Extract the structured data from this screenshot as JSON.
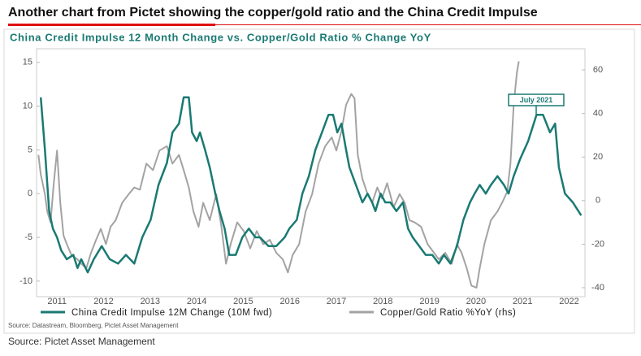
{
  "headline": "Another chart from Pictet showing the copper/gold ratio and the China Credit Impulse",
  "footer": "Source: Pictet Asset Management",
  "chart_data": {
    "type": "line",
    "title": "China Credit Impulse 12 Month Change vs. Copper/Gold Ratio % Change YoY",
    "source": "Source: Datastream, Bloomberg, Pictet Asset Management",
    "annotation": "July 2021",
    "xlim": [
      2011.06,
      2022.84
    ],
    "xticks": [
      {
        "value": 2011.5,
        "label": "2011"
      },
      {
        "value": 2012.5,
        "label": "2012"
      },
      {
        "value": 2013.5,
        "label": "2013"
      },
      {
        "value": 2014.5,
        "label": "2014"
      },
      {
        "value": 2015.5,
        "label": "2015"
      },
      {
        "value": 2016.5,
        "label": "2016"
      },
      {
        "value": 2017.5,
        "label": "2017"
      },
      {
        "value": 2018.5,
        "label": "2018"
      },
      {
        "value": 2019.5,
        "label": "2019"
      },
      {
        "value": 2020.5,
        "label": "2020"
      },
      {
        "value": 2021.5,
        "label": "2021"
      },
      {
        "value": 2022.5,
        "label": "2022"
      }
    ],
    "ylim": [
      -11.5,
      16
    ],
    "yticks": [
      -10,
      -5,
      0,
      5,
      10,
      15
    ],
    "y2lim": [
      -43,
      67.5
    ],
    "y2ticks": [
      -40,
      -20,
      0,
      20,
      40,
      60
    ],
    "series": [
      {
        "name": "China Credit Impulse 12M Change (10M fwd)",
        "color": "#1a7a73",
        "axis": "y",
        "x": [
          2011.15,
          2011.24,
          2011.33,
          2011.41,
          2011.5,
          2011.59,
          2011.71,
          2011.85,
          2011.94,
          2012.02,
          2012.16,
          2012.29,
          2012.46,
          2012.63,
          2012.81,
          2012.98,
          2013.16,
          2013.33,
          2013.51,
          2013.68,
          2013.86,
          2013.98,
          2014.12,
          2014.22,
          2014.33,
          2014.4,
          2014.5,
          2014.57,
          2014.68,
          2014.78,
          2014.9,
          2014.99,
          2015.1,
          2015.2,
          2015.34,
          2015.48,
          2015.62,
          2015.76,
          2015.86,
          2016.04,
          2016.21,
          2016.39,
          2016.49,
          2016.65,
          2016.77,
          2016.91,
          2017.05,
          2017.19,
          2017.33,
          2017.43,
          2017.52,
          2017.61,
          2017.71,
          2017.78,
          2017.92,
          2018.06,
          2018.17,
          2018.27,
          2018.34,
          2018.45,
          2018.55,
          2018.66,
          2018.79,
          2018.93,
          2019.04,
          2019.14,
          2019.28,
          2019.42,
          2019.56,
          2019.7,
          2019.81,
          2019.95,
          2020.09,
          2020.23,
          2020.37,
          2020.47,
          2020.58,
          2020.71,
          2020.82,
          2020.96,
          2021.1,
          2021.2,
          2021.31,
          2021.45,
          2021.62,
          2021.8,
          2021.94,
          2022.09,
          2022.2,
          2022.28,
          2022.41,
          2022.58,
          2022.76
        ],
        "values": [
          11,
          5,
          -2,
          -4,
          -5,
          -6.5,
          -7.5,
          -7,
          -8.5,
          -7.5,
          -9,
          -7.5,
          -6,
          -7.5,
          -8,
          -7,
          -8,
          -5,
          -3,
          1,
          3.5,
          7,
          8,
          11,
          11,
          7,
          6,
          7,
          5,
          3,
          0,
          -2,
          -4,
          -7,
          -7,
          -5,
          -4,
          -5,
          -5,
          -6,
          -6,
          -5,
          -4,
          -3,
          0,
          2,
          5,
          7,
          9,
          9,
          7,
          8,
          5,
          3,
          1,
          -1,
          0,
          -1,
          -2,
          0,
          -1,
          -1,
          -2,
          -1,
          -4,
          -5,
          -6,
          -7,
          -7,
          -8,
          -7,
          -8,
          -6,
          -3,
          -1,
          0,
          1,
          0,
          1,
          2,
          1,
          0,
          2,
          4,
          6,
          9,
          9,
          7,
          8,
          3,
          0,
          -1,
          -2.5
        ]
      },
      {
        "name": "Copper/Gold Ratio %YoY (rhs)",
        "color": "#a3a3a3",
        "axis": "y2",
        "x": [
          2011.1,
          2011.15,
          2011.24,
          2011.29,
          2011.36,
          2011.43,
          2011.5,
          2011.57,
          2011.64,
          2011.71,
          2011.81,
          2011.94,
          2012.02,
          2012.13,
          2012.23,
          2012.34,
          2012.44,
          2012.55,
          2012.65,
          2012.76,
          2012.9,
          2013.04,
          2013.16,
          2013.28,
          2013.42,
          2013.56,
          2013.7,
          2013.86,
          2013.98,
          2014.12,
          2014.22,
          2014.33,
          2014.43,
          2014.54,
          2014.64,
          2014.78,
          2014.92,
          2015.03,
          2015.13,
          2015.23,
          2015.37,
          2015.51,
          2015.65,
          2015.79,
          2015.93,
          2016.07,
          2016.21,
          2016.35,
          2016.46,
          2016.56,
          2016.7,
          2016.84,
          2016.98,
          2017.12,
          2017.26,
          2017.4,
          2017.5,
          2017.61,
          2017.71,
          2017.82,
          2017.89,
          2017.96,
          2018.06,
          2018.17,
          2018.27,
          2018.38,
          2018.48,
          2018.59,
          2018.73,
          2018.86,
          2018.97,
          2019.07,
          2019.18,
          2019.32,
          2019.46,
          2019.6,
          2019.7,
          2019.84,
          2019.98,
          2020.09,
          2020.19,
          2020.3,
          2020.4,
          2020.51,
          2020.58,
          2020.68,
          2020.82,
          2020.96,
          2021.06,
          2021.17,
          2021.24,
          2021.31,
          2021.38,
          2021.42
        ],
        "values": [
          21,
          12,
          3,
          -5,
          -10,
          8,
          23,
          -1,
          -16,
          -20,
          -25,
          -27,
          -29,
          -31,
          -24,
          -18,
          -13,
          -20,
          -12,
          -9,
          -1,
          3,
          6,
          5,
          17,
          14,
          23,
          25,
          17,
          21,
          14,
          6,
          -5,
          -12,
          -1,
          -9,
          3,
          -12,
          -29,
          -20,
          -10,
          -14,
          -22,
          -14,
          -20,
          -18,
          -24,
          -27,
          -33,
          -25,
          -20,
          -5,
          3,
          17,
          25,
          29,
          23,
          32,
          44,
          49,
          47,
          21,
          10,
          3,
          -1,
          6,
          1,
          8,
          -3,
          3,
          -1,
          -9,
          -10,
          -12,
          -20,
          -24,
          -27,
          -24,
          -29,
          -20,
          -24,
          -31,
          -39,
          -40,
          -31,
          -20,
          -9,
          -5,
          -1,
          4,
          17,
          44,
          59,
          64
        ]
      }
    ]
  }
}
